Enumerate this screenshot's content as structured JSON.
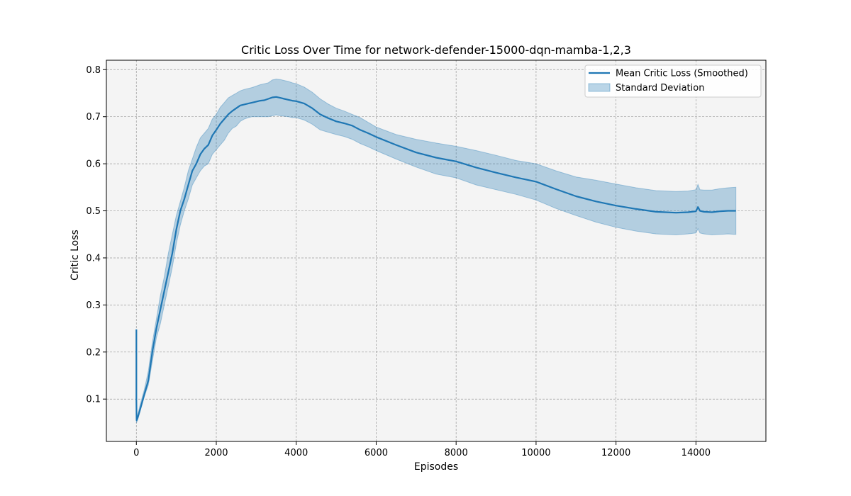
{
  "chart_data": {
    "type": "line",
    "title": "Critic Loss Over Time for network-defender-15000-dqn-mamba-1,2,3",
    "xlabel": "Episodes",
    "ylabel": "Critic Loss",
    "xlim": [
      -750,
      15750
    ],
    "ylim": [
      0.01,
      0.82
    ],
    "xticks": [
      0,
      2000,
      4000,
      6000,
      8000,
      10000,
      12000,
      14000
    ],
    "xtick_labels": [
      "0",
      "2000",
      "4000",
      "6000",
      "8000",
      "10000",
      "12000",
      "14000"
    ],
    "yticks": [
      0.1,
      0.2,
      0.3,
      0.4,
      0.5,
      0.6,
      0.7,
      0.8
    ],
    "ytick_labels": [
      "0.1",
      "0.2",
      "0.3",
      "0.4",
      "0.5",
      "0.6",
      "0.7",
      "0.8"
    ],
    "grid": true,
    "legend_position": "top-right",
    "series": [
      {
        "name": "Mean Critic Loss (Smoothed)",
        "kind": "line",
        "color": "#1f77b4",
        "x": [
          0,
          1,
          5,
          30,
          100,
          200,
          300,
          400,
          500,
          600,
          700,
          800,
          900,
          1000,
          1100,
          1200,
          1300,
          1400,
          1500,
          1600,
          1700,
          1800,
          1900,
          2000,
          2100,
          2200,
          2300,
          2400,
          2500,
          2600,
          2700,
          2800,
          2900,
          3000,
          3100,
          3200,
          3300,
          3400,
          3500,
          3600,
          3700,
          3800,
          3900,
          4000,
          4200,
          4400,
          4600,
          4800,
          5000,
          5200,
          5400,
          5600,
          5800,
          6000,
          6500,
          7000,
          7500,
          8000,
          8500,
          9000,
          9500,
          10000,
          10500,
          11000,
          11500,
          12000,
          12500,
          13000,
          13500,
          13800,
          14000,
          14050,
          14100,
          14200,
          14400,
          14600,
          14800,
          15000
        ],
        "y": [
          0.248,
          0.1,
          0.055,
          0.06,
          0.08,
          0.11,
          0.14,
          0.2,
          0.25,
          0.29,
          0.33,
          0.37,
          0.41,
          0.46,
          0.5,
          0.525,
          0.555,
          0.585,
          0.6,
          0.62,
          0.632,
          0.64,
          0.66,
          0.672,
          0.685,
          0.695,
          0.705,
          0.712,
          0.718,
          0.724,
          0.726,
          0.728,
          0.73,
          0.732,
          0.734,
          0.735,
          0.738,
          0.741,
          0.742,
          0.74,
          0.738,
          0.736,
          0.734,
          0.733,
          0.728,
          0.718,
          0.705,
          0.697,
          0.69,
          0.686,
          0.681,
          0.672,
          0.665,
          0.657,
          0.64,
          0.624,
          0.613,
          0.605,
          0.592,
          0.581,
          0.571,
          0.562,
          0.546,
          0.531,
          0.52,
          0.511,
          0.504,
          0.498,
          0.496,
          0.497,
          0.499,
          0.508,
          0.5,
          0.498,
          0.497,
          0.499,
          0.5,
          0.5
        ]
      },
      {
        "name": "Standard Deviation",
        "kind": "band",
        "color": "#1f77b4",
        "x": [
          0,
          5,
          30,
          100,
          200,
          300,
          400,
          500,
          600,
          700,
          800,
          900,
          1000,
          1100,
          1200,
          1300,
          1400,
          1500,
          1600,
          1700,
          1800,
          1900,
          2000,
          2100,
          2200,
          2300,
          2400,
          2500,
          2600,
          2700,
          2800,
          2900,
          3000,
          3100,
          3200,
          3300,
          3400,
          3500,
          3600,
          3700,
          3800,
          3900,
          4000,
          4200,
          4400,
          4600,
          4800,
          5000,
          5200,
          5400,
          5600,
          5800,
          6000,
          6500,
          7000,
          7500,
          8000,
          8500,
          9000,
          9500,
          10000,
          10500,
          11000,
          11500,
          12000,
          12500,
          13000,
          13500,
          13800,
          14000,
          14050,
          14100,
          14200,
          14400,
          14600,
          14800,
          15000
        ],
        "lower": [
          0.05,
          0.05,
          0.055,
          0.075,
          0.105,
          0.13,
          0.18,
          0.23,
          0.26,
          0.3,
          0.34,
          0.38,
          0.43,
          0.47,
          0.5,
          0.525,
          0.555,
          0.57,
          0.585,
          0.595,
          0.6,
          0.62,
          0.63,
          0.64,
          0.65,
          0.665,
          0.675,
          0.68,
          0.69,
          0.695,
          0.698,
          0.7,
          0.7,
          0.7,
          0.7,
          0.7,
          0.702,
          0.704,
          0.702,
          0.701,
          0.7,
          0.698,
          0.698,
          0.693,
          0.684,
          0.672,
          0.667,
          0.662,
          0.658,
          0.652,
          0.643,
          0.636,
          0.628,
          0.61,
          0.593,
          0.578,
          0.57,
          0.555,
          0.545,
          0.535,
          0.523,
          0.505,
          0.49,
          0.476,
          0.465,
          0.457,
          0.451,
          0.449,
          0.451,
          0.453,
          0.462,
          0.453,
          0.451,
          0.449,
          0.45,
          0.451,
          0.45
        ],
        "upper": [
          0.05,
          0.06,
          0.065,
          0.09,
          0.12,
          0.16,
          0.22,
          0.27,
          0.32,
          0.36,
          0.41,
          0.45,
          0.49,
          0.52,
          0.55,
          0.585,
          0.61,
          0.635,
          0.655,
          0.665,
          0.675,
          0.695,
          0.705,
          0.72,
          0.73,
          0.74,
          0.745,
          0.75,
          0.755,
          0.758,
          0.76,
          0.762,
          0.765,
          0.768,
          0.77,
          0.772,
          0.778,
          0.78,
          0.779,
          0.777,
          0.775,
          0.772,
          0.77,
          0.763,
          0.752,
          0.738,
          0.727,
          0.718,
          0.712,
          0.705,
          0.698,
          0.688,
          0.678,
          0.662,
          0.652,
          0.644,
          0.637,
          0.628,
          0.618,
          0.607,
          0.6,
          0.585,
          0.572,
          0.565,
          0.557,
          0.549,
          0.543,
          0.541,
          0.542,
          0.545,
          0.556,
          0.545,
          0.544,
          0.544,
          0.547,
          0.549,
          0.55
        ]
      }
    ]
  },
  "colors": {
    "plot_background": "#f4f4f4",
    "grid": "#9a9a9a",
    "line": "#1f77b4",
    "band_fill": "#aac8e0"
  }
}
